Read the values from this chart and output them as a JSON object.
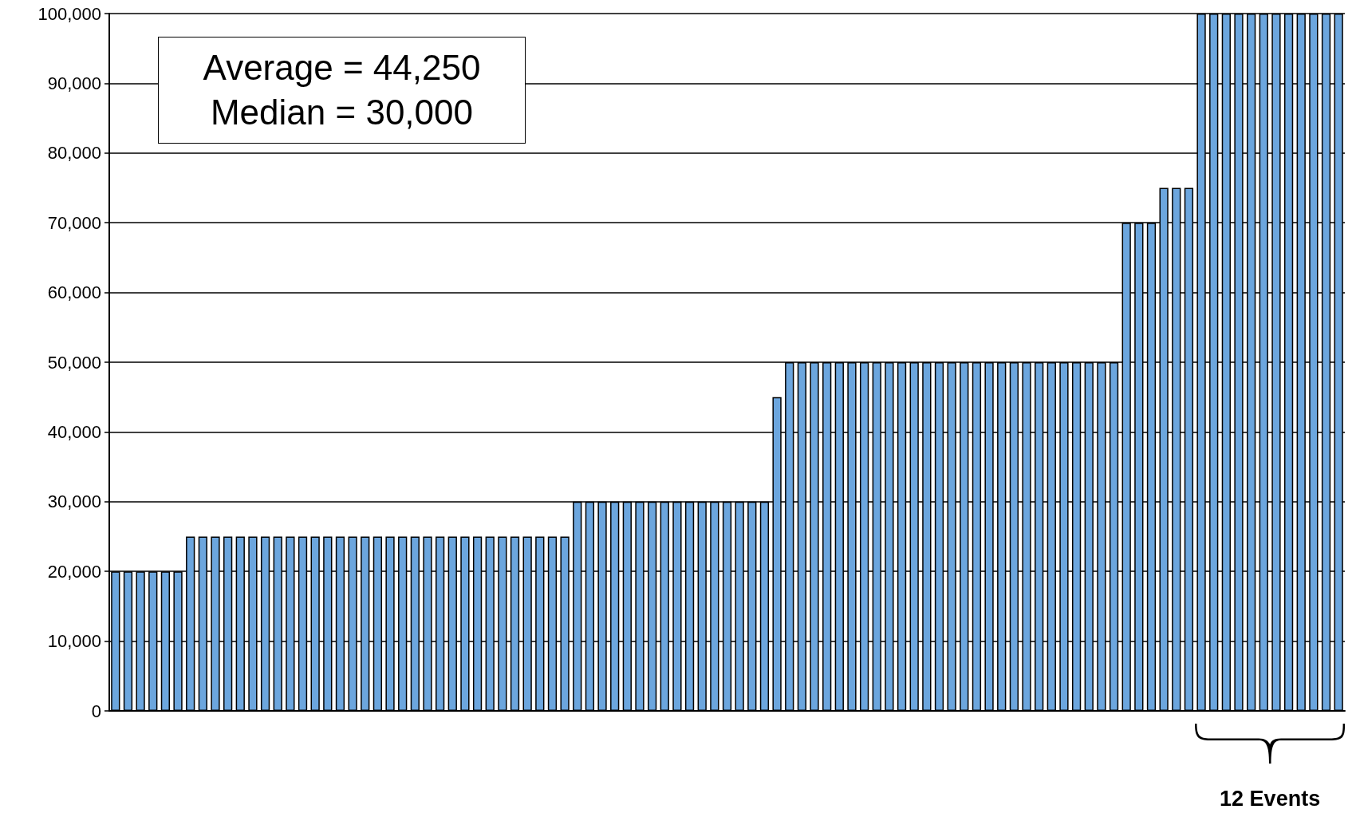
{
  "chart_data": {
    "type": "bar",
    "categories": [
      null,
      null,
      null,
      null,
      null,
      null,
      null,
      null,
      null,
      null,
      null,
      null,
      null,
      null,
      null,
      null,
      null,
      null,
      null,
      null,
      null,
      null,
      null,
      null,
      null,
      null,
      null,
      null,
      null,
      null,
      null,
      null,
      null,
      null,
      null,
      null,
      null,
      null,
      null,
      null,
      null,
      null,
      null,
      null,
      null,
      null,
      null,
      null,
      null,
      null,
      null,
      null,
      null,
      null,
      null,
      null,
      null,
      null,
      null,
      null,
      null,
      null,
      null,
      null,
      null,
      null,
      null,
      null,
      null,
      null,
      null,
      null,
      null,
      null,
      null,
      null,
      null,
      null,
      null,
      null,
      null,
      null,
      null,
      null,
      null,
      null,
      null,
      null,
      null,
      null,
      null,
      null,
      null,
      null,
      null,
      null,
      null,
      null,
      null
    ],
    "values": [
      20000,
      20000,
      20000,
      20000,
      20000,
      20000,
      25000,
      25000,
      25000,
      25000,
      25000,
      25000,
      25000,
      25000,
      25000,
      25000,
      25000,
      25000,
      25000,
      25000,
      25000,
      25000,
      25000,
      25000,
      25000,
      25000,
      25000,
      25000,
      25000,
      25000,
      25000,
      25000,
      25000,
      25000,
      25000,
      25000,
      25000,
      30000,
      30000,
      30000,
      30000,
      30000,
      30000,
      30000,
      30000,
      30000,
      30000,
      30000,
      30000,
      30000,
      30000,
      30000,
      30000,
      45000,
      50000,
      50000,
      50000,
      50000,
      50000,
      50000,
      50000,
      50000,
      50000,
      50000,
      50000,
      50000,
      50000,
      50000,
      50000,
      50000,
      50000,
      50000,
      50000,
      50000,
      50000,
      50000,
      50000,
      50000,
      50000,
      50000,
      50000,
      70000,
      70000,
      70000,
      75000,
      75000,
      75000,
      100000,
      100000,
      100000,
      100000,
      100000,
      100000,
      100000,
      100000,
      100000,
      100000,
      100000,
      100000
    ],
    "color": "#6ca6de",
    "ylim": [
      0,
      100000
    ],
    "yticks": [
      0,
      {
        "value": 10000,
        "label": "10,000"
      },
      {
        "value": 20000,
        "label": "20,000"
      },
      {
        "value": 30000,
        "label": "30,000"
      },
      {
        "value": 40000,
        "label": "40,000"
      },
      {
        "value": 50000,
        "label": "50,000"
      },
      {
        "value": 60000,
        "label": "60,000"
      },
      {
        "value": 70000,
        "label": "70,000"
      },
      {
        "value": 80000,
        "label": "80,000"
      },
      {
        "value": 90000,
        "label": "90,000"
      },
      {
        "value": 100000,
        "label": "100,000"
      }
    ],
    "grid": "y",
    "annotations": [
      "Average = 44,250",
      "Median = 30,000",
      "12 Events"
    ]
  }
}
